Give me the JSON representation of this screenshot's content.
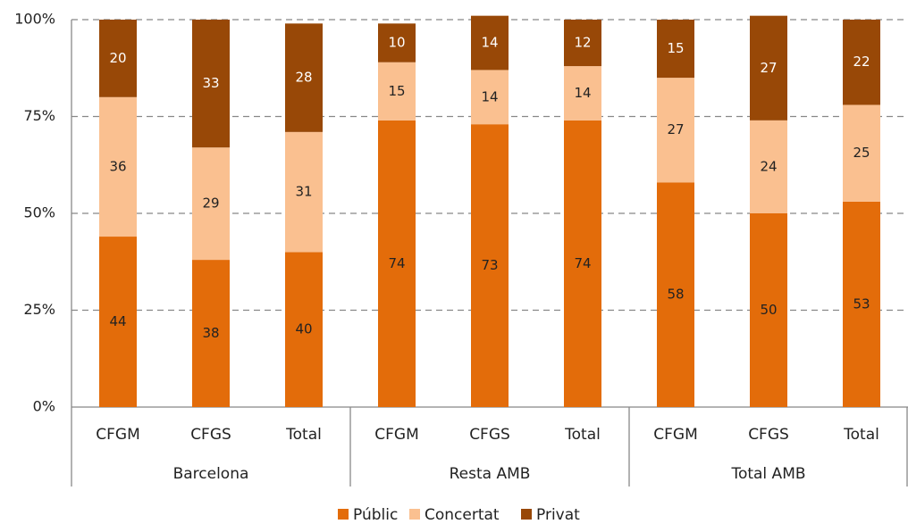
{
  "chart_data": {
    "type": "stacked_bar",
    "categories": [
      "CFGM",
      "CFGS",
      "Total",
      "CFGM",
      "CFGS",
      "Total",
      "CFGM",
      "CFGS",
      "Total"
    ],
    "groups": [
      "Barcelona",
      "Resta AMB",
      "Total AMB"
    ],
    "series": [
      {
        "name": "Públic",
        "color": "#e36c0a",
        "values": [
          44,
          38,
          40,
          74,
          73,
          74,
          58,
          50,
          53
        ]
      },
      {
        "name": "Concertat",
        "color": "#fac090",
        "values": [
          36,
          29,
          31,
          15,
          14,
          14,
          27,
          24,
          25
        ]
      },
      {
        "name": "Privat",
        "color": "#984807",
        "values": [
          20,
          33,
          28,
          10,
          14,
          12,
          15,
          27,
          22
        ]
      }
    ],
    "ylim": [
      0,
      100
    ],
    "yticks": [
      {
        "value": 0,
        "label": "0%"
      },
      {
        "value": 25,
        "label": "25%"
      },
      {
        "value": 50,
        "label": "50%"
      },
      {
        "value": 75,
        "label": "75%"
      },
      {
        "value": 100,
        "label": "100%"
      }
    ],
    "grid": true,
    "legend": "bottom"
  }
}
